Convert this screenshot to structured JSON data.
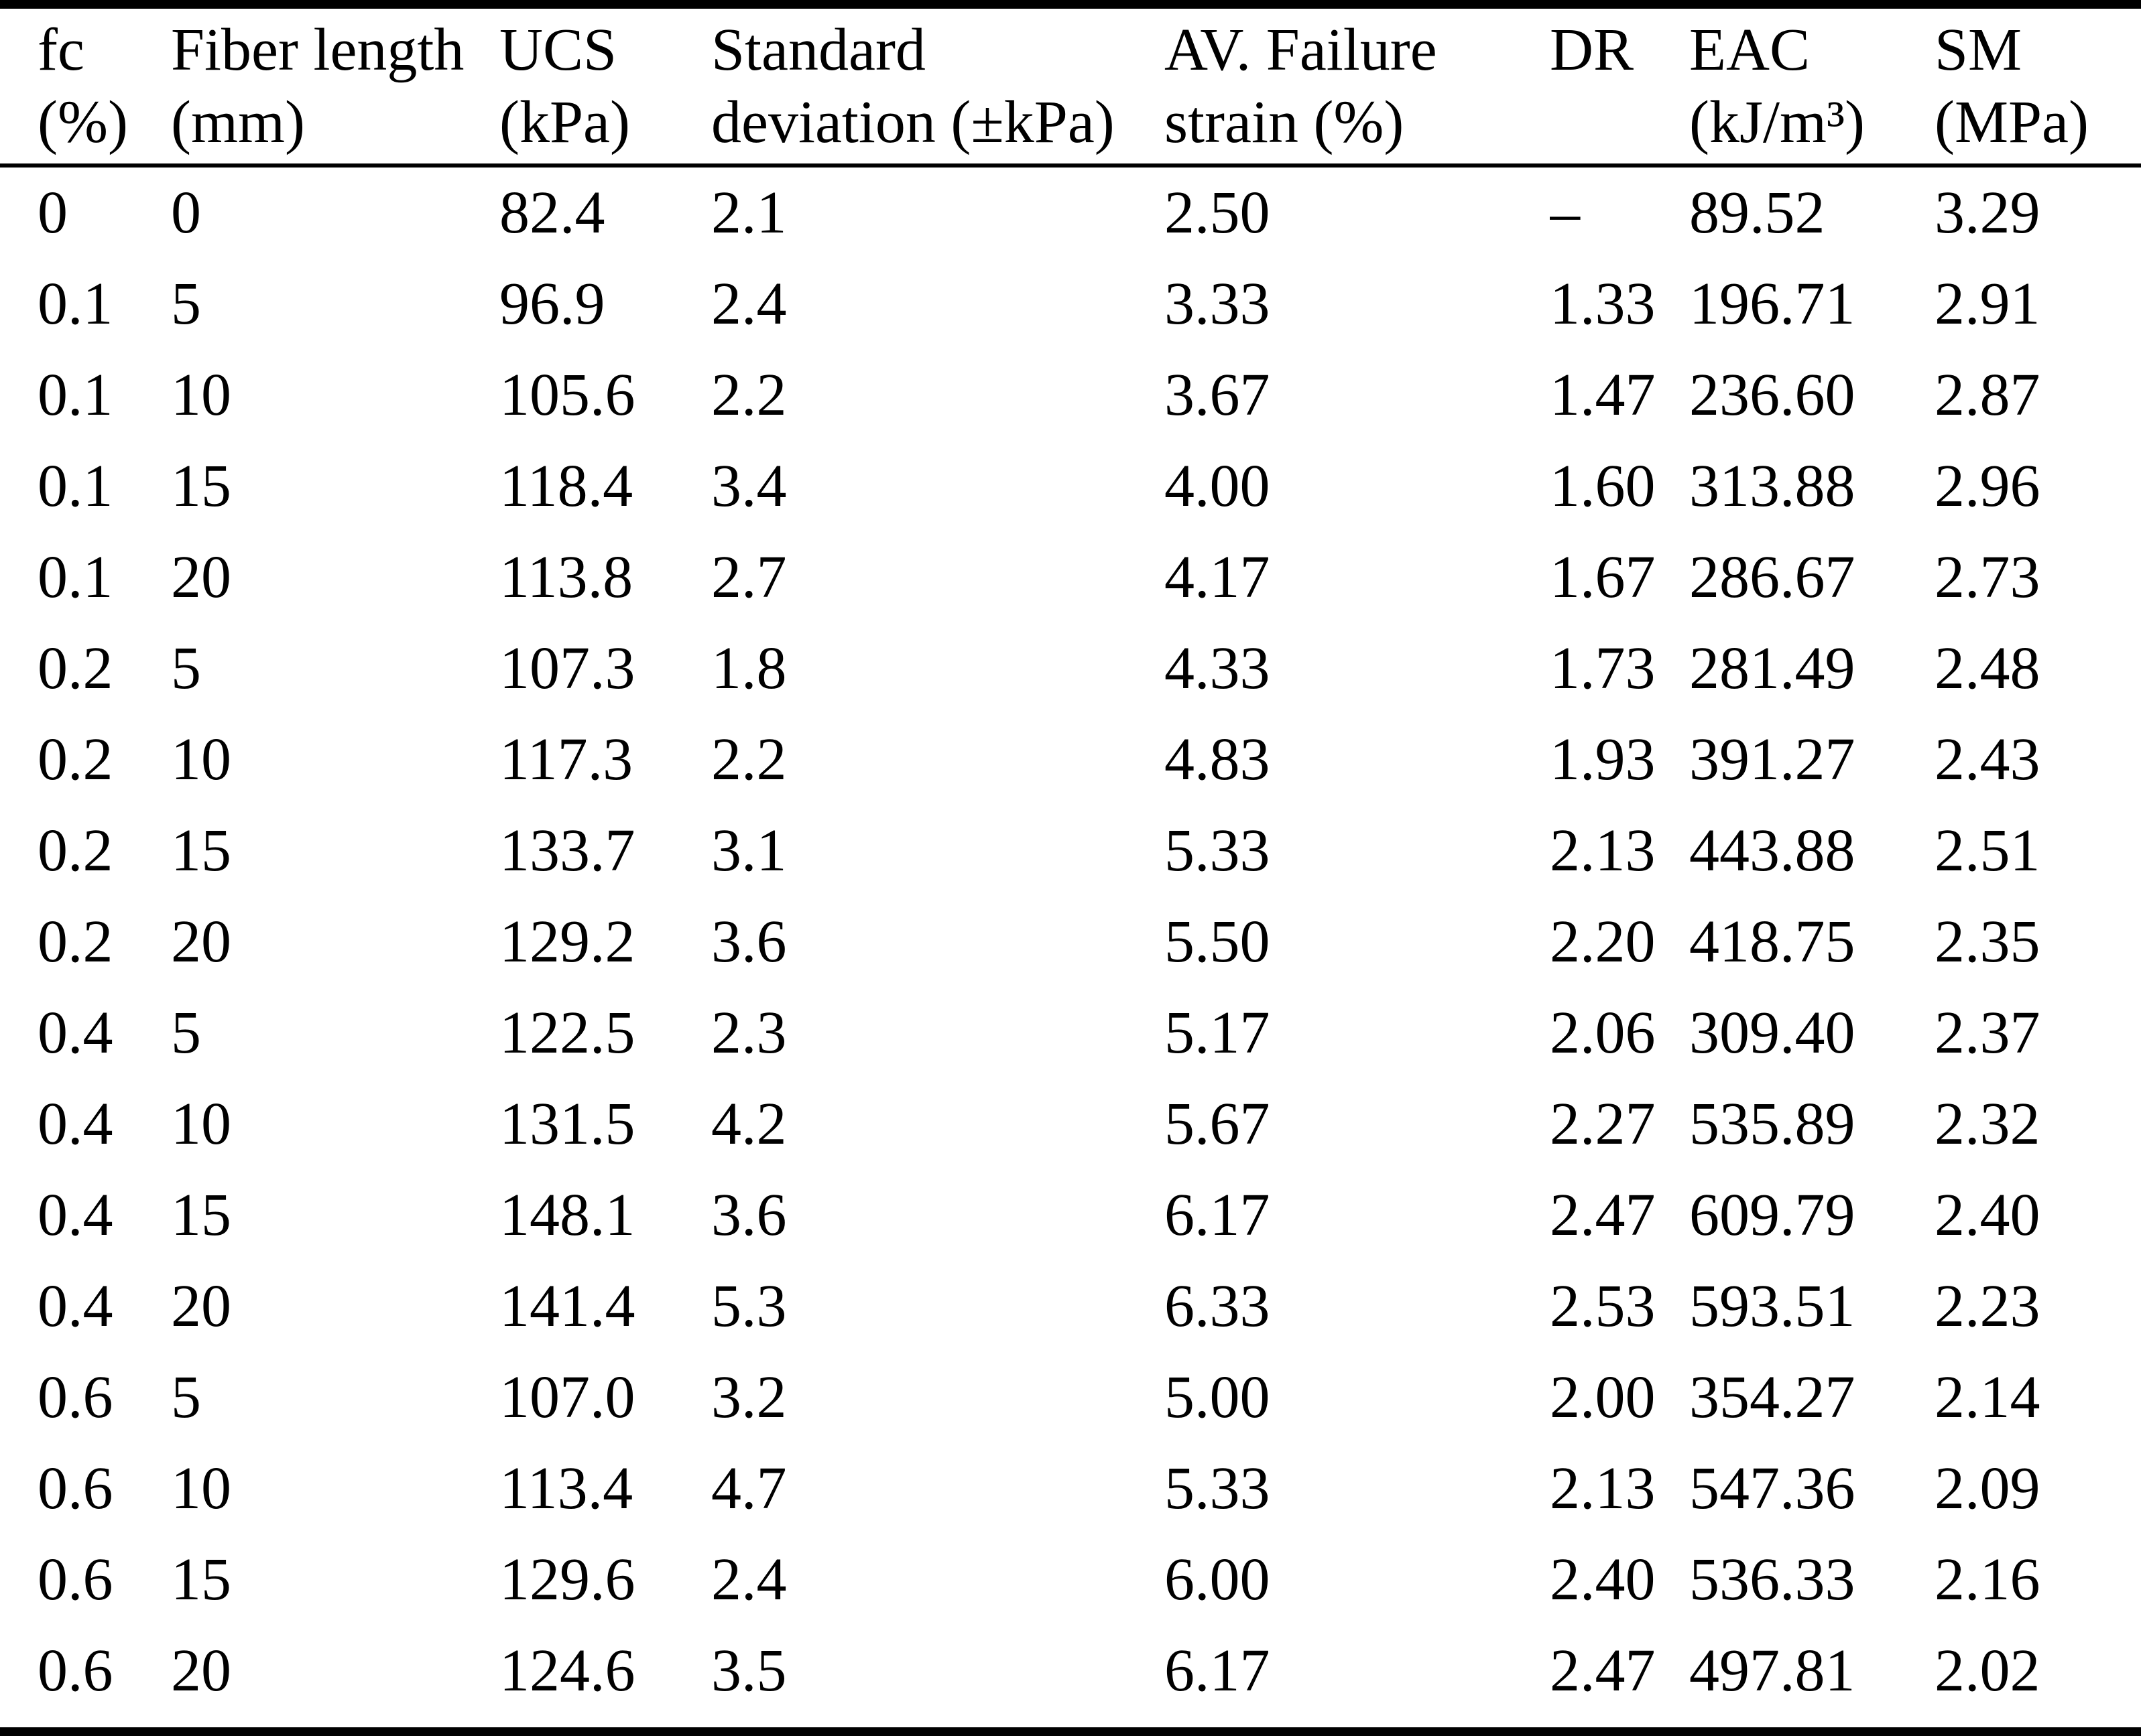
{
  "table": {
    "columns": [
      {
        "label": "fc",
        "unit": "(%)"
      },
      {
        "label": "Fiber length",
        "unit": "(mm)"
      },
      {
        "label": "UCS",
        "unit": "(kPa)"
      },
      {
        "label": "Standard",
        "unit": "deviation (±kPa)"
      },
      {
        "label": "AV. Failure",
        "unit": "strain (%)"
      },
      {
        "label": "DR",
        "unit": ""
      },
      {
        "label": "EAC",
        "unit": "(kJ/m³)"
      },
      {
        "label": "SM",
        "unit": "(MPa)"
      }
    ],
    "rows": [
      [
        "0",
        "0",
        "82.4",
        "2.1",
        "2.50",
        "–",
        "89.52",
        "3.29"
      ],
      [
        "0.1",
        "5",
        "96.9",
        "2.4",
        "3.33",
        "1.33",
        "196.71",
        "2.91"
      ],
      [
        "0.1",
        "10",
        "105.6",
        "2.2",
        "3.67",
        "1.47",
        "236.60",
        "2.87"
      ],
      [
        "0.1",
        "15",
        "118.4",
        "3.4",
        "4.00",
        "1.60",
        "313.88",
        "2.96"
      ],
      [
        "0.1",
        "20",
        "113.8",
        "2.7",
        "4.17",
        "1.67",
        "286.67",
        "2.73"
      ],
      [
        "0.2",
        "5",
        "107.3",
        "1.8",
        "4.33",
        "1.73",
        "281.49",
        "2.48"
      ],
      [
        "0.2",
        "10",
        "117.3",
        "2.2",
        "4.83",
        "1.93",
        "391.27",
        "2.43"
      ],
      [
        "0.2",
        "15",
        "133.7",
        "3.1",
        "5.33",
        "2.13",
        "443.88",
        "2.51"
      ],
      [
        "0.2",
        "20",
        "129.2",
        "3.6",
        "5.50",
        "2.20",
        "418.75",
        "2.35"
      ],
      [
        "0.4",
        "5",
        "122.5",
        "2.3",
        "5.17",
        "2.06",
        "309.40",
        "2.37"
      ],
      [
        "0.4",
        "10",
        "131.5",
        "4.2",
        "5.67",
        "2.27",
        "535.89",
        "2.32"
      ],
      [
        "0.4",
        "15",
        "148.1",
        "3.6",
        "6.17",
        "2.47",
        "609.79",
        "2.40"
      ],
      [
        "0.4",
        "20",
        "141.4",
        "5.3",
        "6.33",
        "2.53",
        "593.51",
        "2.23"
      ],
      [
        "0.6",
        "5",
        "107.0",
        "3.2",
        "5.00",
        "2.00",
        "354.27",
        "2.14"
      ],
      [
        "0.6",
        "10",
        "113.4",
        "4.7",
        "5.33",
        "2.13",
        "547.36",
        "2.09"
      ],
      [
        "0.6",
        "15",
        "129.6",
        "2.4",
        "6.00",
        "2.40",
        "536.33",
        "2.16"
      ],
      [
        "0.6",
        "20",
        "124.6",
        "3.5",
        "6.17",
        "2.47",
        "497.81",
        "2.02"
      ]
    ]
  }
}
